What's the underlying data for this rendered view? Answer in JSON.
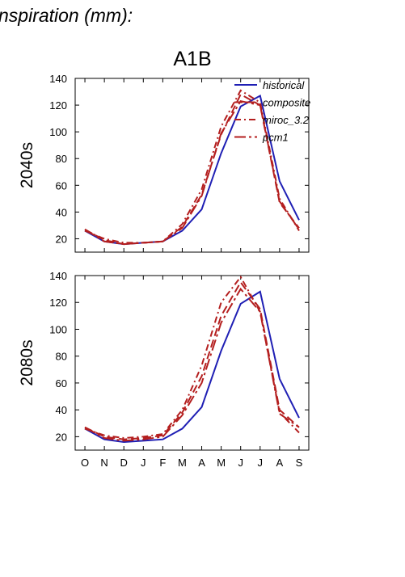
{
  "chart_data": [
    {
      "type": "line",
      "title": "nspiration (mm):",
      "subtitle": "A1B",
      "ylabel": "2040s",
      "categories": [
        null,
        null,
        null,
        null,
        null,
        null,
        null,
        null,
        null,
        null,
        null,
        null
      ],
      "ylim": [
        10,
        140
      ],
      "yticks": [
        20,
        40,
        60,
        80,
        100,
        120,
        140
      ],
      "grid": false,
      "legend": "upper right",
      "series": [
        {
          "name": "historical",
          "color": "#1f1fb4",
          "dash": "none",
          "values": [
            26,
            18,
            16,
            17,
            18,
            26,
            42,
            84,
            119,
            127,
            63,
            34
          ]
        },
        {
          "name": "composite",
          "color": "#b41f1f",
          "dash": "10,5",
          "values": [
            27,
            19,
            16,
            17,
            18,
            29,
            53,
            98,
            128,
            120,
            47,
            28
          ]
        },
        {
          "name": "miroc_3.2",
          "color": "#b41f1f",
          "dash": "8,4,2,4",
          "values": [
            26,
            20,
            17,
            17,
            18,
            31,
            57,
            104,
            131,
            122,
            50,
            26
          ]
        },
        {
          "name": "pcm1",
          "color": "#b41f1f",
          "dash": "14,4,3,4",
          "values": [
            27,
            18,
            16,
            17,
            18,
            28,
            52,
            99,
            123,
            120,
            48,
            27
          ]
        }
      ]
    },
    {
      "type": "line",
      "ylabel": "2080s",
      "categories": [
        "O",
        "N",
        "D",
        "J",
        "F",
        "M",
        "A",
        "M",
        "J",
        "J",
        "A",
        "S"
      ],
      "ylim": [
        10,
        140
      ],
      "yticks": [
        20,
        40,
        60,
        80,
        100,
        120,
        140
      ],
      "grid": false,
      "series": [
        {
          "color": "#1f1fb4",
          "dash": "none",
          "values": [
            26,
            18,
            16,
            17,
            18,
            26,
            42,
            84,
            119,
            128,
            63,
            34
          ]
        },
        {
          "color": "#b41f1f",
          "dash": "10,5",
          "values": [
            27,
            20,
            18,
            19,
            21,
            38,
            65,
            110,
            135,
            115,
            40,
            27
          ]
        },
        {
          "color": "#b41f1f",
          "dash": "8,4,2,4",
          "values": [
            26,
            21,
            19,
            20,
            22,
            40,
            73,
            120,
            139,
            113,
            38,
            23
          ]
        },
        {
          "color": "#b41f1f",
          "dash": "14,4,3,4",
          "values": [
            27,
            19,
            17,
            18,
            20,
            36,
            60,
            105,
            130,
            113,
            37,
            27
          ]
        }
      ]
    }
  ]
}
